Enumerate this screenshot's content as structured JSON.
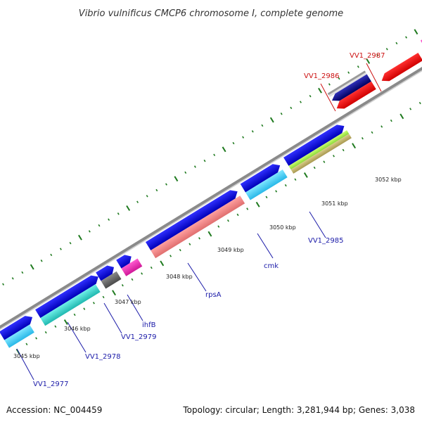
{
  "title": "Vibrio vulnificus CMCP6 chromosome I, complete genome",
  "footer": {
    "accession": "Accession: NC_004459",
    "summary": "Topology: circular; Length: 3,281,944 bp; Genes: 3,038"
  },
  "kbp_labels": [
    "3045 kbp",
    "3046 kbp",
    "3047 kbp",
    "3048 kbp",
    "3049 kbp",
    "3050 kbp",
    "3051 kbp",
    "3052 kbp"
  ],
  "gene_labels_reverse": [
    "VV1_2986",
    "VV1_2987"
  ],
  "gene_labels_forward": [
    "VV1_2977",
    "VV1_2978",
    "VV1_2979",
    "ihfB",
    "rpsA",
    "cmk",
    "VV1_2985"
  ],
  "colors": {
    "forward_label": "#1a1aa8",
    "reverse_label": "#cc1111",
    "backbone": "#8a8a8a",
    "tick": "#1f7a1f",
    "cds_strand": "#1010e0",
    "reverse_cds": "#ff1010"
  }
}
